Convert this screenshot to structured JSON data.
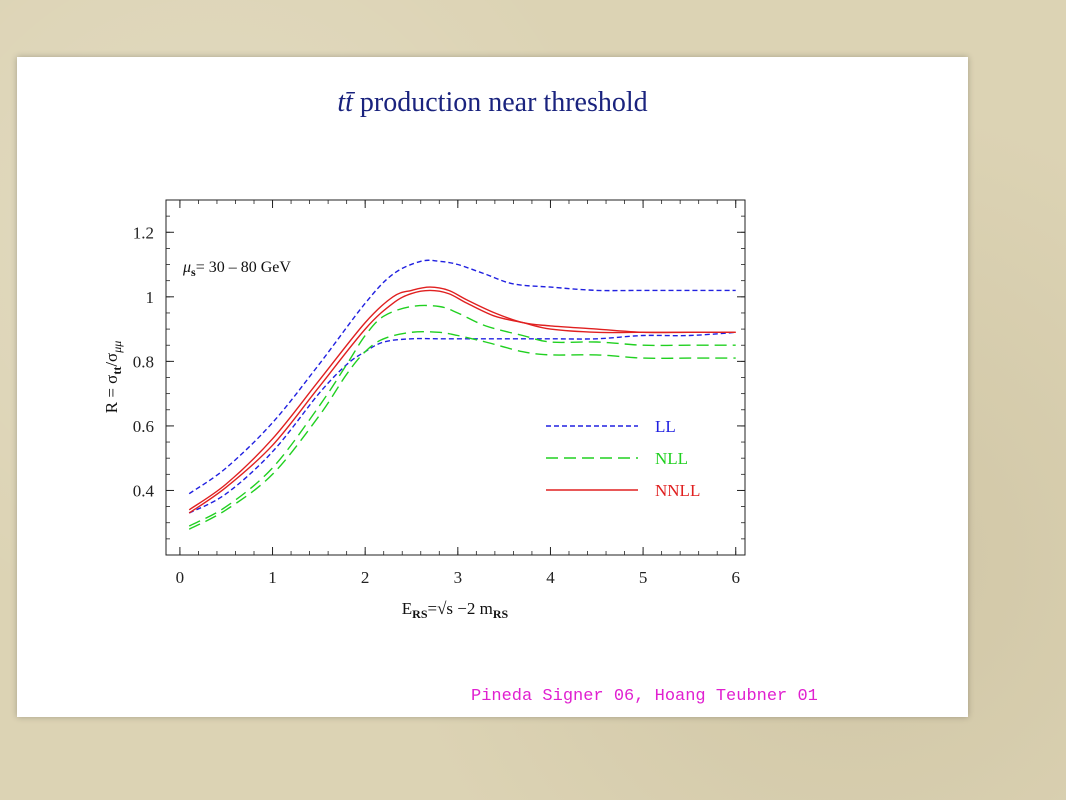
{
  "slide": {
    "title_prefix": "tt̄",
    "title_rest": " production near threshold",
    "citation": "Pineda Signer 06, Hoang Teubner 01"
  },
  "chart_data": {
    "type": "line",
    "xlabel": "E_RS=√s −2 m_RS",
    "ylabel": "R = σ_tt/σ_μμ",
    "annotation": "μs= 30 – 80 GeV",
    "xlim": [
      -0.15,
      6.1
    ],
    "ylim": [
      0.2,
      1.3
    ],
    "x_ticks": [
      0,
      1,
      2,
      3,
      4,
      5,
      6
    ],
    "y_ticks": [
      0.4,
      0.6,
      0.8,
      1,
      1.2
    ],
    "y_tick_labels": [
      "0.4",
      "0.6",
      "0.8",
      "1",
      "1.2"
    ],
    "legend": [
      {
        "name": "LL",
        "color": "#2020e0",
        "dash": "short"
      },
      {
        "name": "NLL",
        "color": "#20d020",
        "dash": "long"
      },
      {
        "name": "NNLL",
        "color": "#e02020",
        "dash": "solid"
      }
    ],
    "colors": {
      "LL": "#2020e0",
      "NLL": "#20d020",
      "NNLL": "#e02020"
    },
    "series": [
      {
        "group": "LL",
        "x": [
          0.1,
          0.5,
          1.0,
          1.5,
          2.0,
          2.3,
          2.6,
          2.8,
          3.0,
          3.3,
          3.6,
          4.0,
          4.5,
          5.0,
          5.5,
          6.0
        ],
        "y": [
          0.39,
          0.47,
          0.61,
          0.79,
          0.98,
          1.07,
          1.11,
          1.11,
          1.1,
          1.07,
          1.04,
          1.03,
          1.02,
          1.02,
          1.02,
          1.02
        ]
      },
      {
        "group": "LL",
        "x": [
          0.1,
          0.5,
          1.0,
          1.5,
          1.8,
          2.0,
          2.2,
          2.5,
          2.8,
          3.2,
          3.6,
          4.0,
          4.5,
          5.0,
          5.5,
          6.0
        ],
        "y": [
          0.33,
          0.39,
          0.52,
          0.7,
          0.79,
          0.83,
          0.86,
          0.87,
          0.87,
          0.87,
          0.87,
          0.87,
          0.87,
          0.88,
          0.88,
          0.89
        ]
      },
      {
        "group": "NLL",
        "x": [
          0.1,
          0.5,
          1.0,
          1.5,
          1.8,
          2.0,
          2.2,
          2.5,
          2.8,
          3.0,
          3.3,
          3.7,
          4.0,
          4.5,
          5.0,
          5.5,
          6.0
        ],
        "y": [
          0.29,
          0.35,
          0.47,
          0.66,
          0.79,
          0.88,
          0.94,
          0.97,
          0.97,
          0.95,
          0.91,
          0.88,
          0.86,
          0.86,
          0.85,
          0.85,
          0.85
        ]
      },
      {
        "group": "NLL",
        "x": [
          0.1,
          0.5,
          1.0,
          1.5,
          1.8,
          2.0,
          2.2,
          2.5,
          2.8,
          3.0,
          3.3,
          3.7,
          4.0,
          4.5,
          5.0,
          5.5,
          6.0
        ],
        "y": [
          0.28,
          0.34,
          0.45,
          0.63,
          0.76,
          0.83,
          0.87,
          0.89,
          0.89,
          0.88,
          0.86,
          0.83,
          0.82,
          0.82,
          0.81,
          0.81,
          0.81
        ]
      },
      {
        "group": "NNLL",
        "x": [
          0.1,
          0.5,
          1.0,
          1.5,
          2.0,
          2.3,
          2.5,
          2.7,
          2.9,
          3.1,
          3.4,
          3.7,
          4.0,
          4.5,
          5.0,
          5.5,
          6.0
        ],
        "y": [
          0.34,
          0.42,
          0.56,
          0.74,
          0.92,
          1.0,
          1.02,
          1.03,
          1.02,
          0.99,
          0.95,
          0.92,
          0.91,
          0.9,
          0.89,
          0.89,
          0.89
        ]
      },
      {
        "group": "NNLL",
        "x": [
          0.1,
          0.5,
          1.0,
          1.5,
          2.0,
          2.3,
          2.5,
          2.7,
          2.9,
          3.1,
          3.4,
          3.7,
          4.0,
          4.5,
          5.0,
          5.5,
          6.0
        ],
        "y": [
          0.33,
          0.41,
          0.54,
          0.72,
          0.9,
          0.98,
          1.01,
          1.02,
          1.01,
          0.98,
          0.94,
          0.92,
          0.9,
          0.89,
          0.89,
          0.89,
          0.89
        ]
      }
    ]
  }
}
